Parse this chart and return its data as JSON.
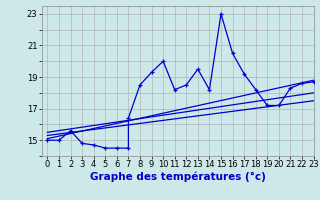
{
  "background_color": "#cde8e8",
  "grid_color": "#aaaaaa",
  "line_color": "#0000cc",
  "xlim": [
    -0.5,
    23
  ],
  "ylim": [
    14,
    23.5
  ],
  "xticks": [
    0,
    1,
    2,
    3,
    4,
    5,
    6,
    7,
    8,
    9,
    10,
    11,
    12,
    13,
    14,
    15,
    16,
    17,
    18,
    19,
    20,
    21,
    22,
    23
  ],
  "yticks": [
    14,
    15,
    16,
    17,
    18,
    19,
    20,
    21,
    22,
    23
  ],
  "yticklabels": [
    "",
    "15",
    "",
    "17",
    "",
    "19",
    "",
    "21",
    "",
    "23"
  ],
  "xlabel": "Graphe des températures (°c)",
  "xlabel_fontsize": 7.5,
  "tick_fontsize": 6,
  "series1_x": [
    0,
    1,
    2,
    3,
    4,
    5,
    6,
    7,
    7,
    8,
    9,
    10,
    11,
    12,
    13,
    14,
    15,
    16,
    17,
    18,
    19,
    20,
    21,
    22,
    23
  ],
  "series1_y": [
    15.0,
    15.0,
    15.6,
    14.8,
    14.7,
    14.5,
    14.5,
    14.5,
    16.4,
    18.5,
    19.3,
    20.0,
    18.2,
    18.5,
    19.5,
    18.2,
    23.0,
    20.5,
    19.2,
    18.2,
    17.2,
    17.2,
    18.3,
    18.6,
    18.7
  ],
  "series2_x": [
    0,
    23
  ],
  "series2_y": [
    15.1,
    18.8
  ],
  "series3_x": [
    0,
    23
  ],
  "series3_y": [
    15.3,
    17.5
  ],
  "series4_x": [
    0,
    23
  ],
  "series4_y": [
    15.5,
    18.0
  ]
}
